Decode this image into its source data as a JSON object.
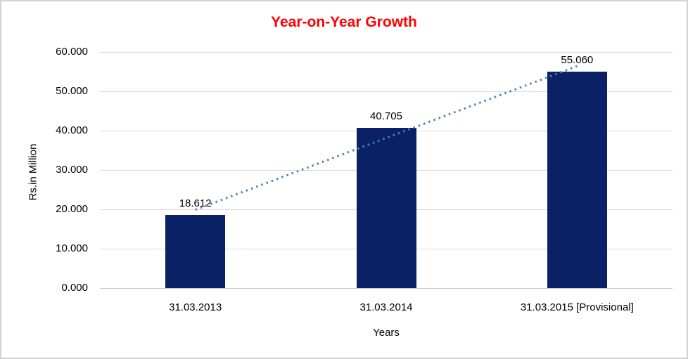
{
  "window": {
    "background": "#FFFFFF",
    "border_color": "#D3D3D3"
  },
  "chart_data": {
    "type": "bar",
    "title": "Year-on-Year Growth",
    "title_color": "#FF0000",
    "categories": [
      "31.03.2013",
      "31.03.2014",
      "31.03.2015 [Provisional]"
    ],
    "values": [
      18.612,
      40.705,
      55.06
    ],
    "data_labels": [
      "18.612",
      "40.705",
      "55.060"
    ],
    "xlabel": "Years",
    "ylabel": "Rs.in Million",
    "ylim": [
      0,
      60
    ],
    "ytick_step": 10,
    "yticks": [
      "0.000",
      "10.000",
      "20.000",
      "30.000",
      "40.000",
      "50.000",
      "60.000"
    ],
    "bar_color": "#0A2265",
    "gridline_color": "#D9D9D9",
    "axisline_color": "#C6C6C6",
    "text_color": "#000000",
    "grid": true,
    "legend": "none",
    "trendline": {
      "type": "linear",
      "style": "dotted",
      "color": "#4F81BD",
      "start_value": 19.9,
      "end_value": 56.4
    }
  }
}
